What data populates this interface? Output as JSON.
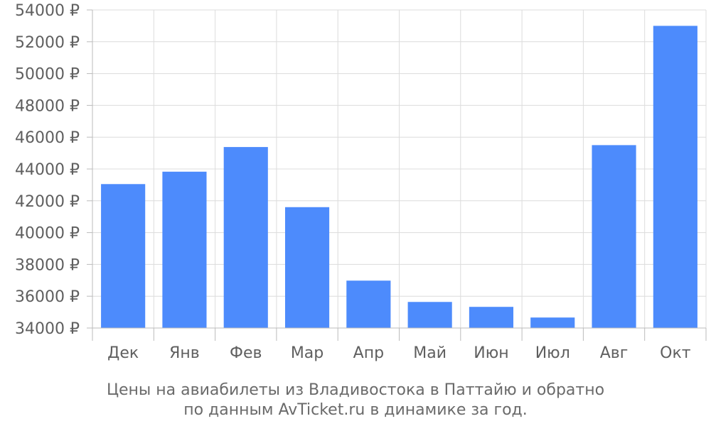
{
  "chart_data": {
    "type": "bar",
    "categories": [
      "Дек",
      "Янв",
      "Фев",
      "Мар",
      "Апр",
      "Май",
      "Июн",
      "Июл",
      "Авг",
      "Окт"
    ],
    "values": [
      43050,
      43830,
      45380,
      41600,
      36980,
      35640,
      35330,
      34660,
      45500,
      53000
    ],
    "ylim": [
      34000,
      54000
    ],
    "y_ticks": [
      34000,
      36000,
      38000,
      40000,
      42000,
      44000,
      46000,
      48000,
      50000,
      52000,
      54000
    ],
    "y_tick_suffix": " ₽",
    "grid": true,
    "colors": {
      "bar": "#4d8bfc",
      "grid": "#dcdcdc",
      "axis": "#bbbbbb"
    }
  },
  "caption": {
    "line1": "Цены на авиабилеты из Владивостока в Паттайю и обратно",
    "line2": "по данным AvTicket.ru в динамике за год."
  }
}
